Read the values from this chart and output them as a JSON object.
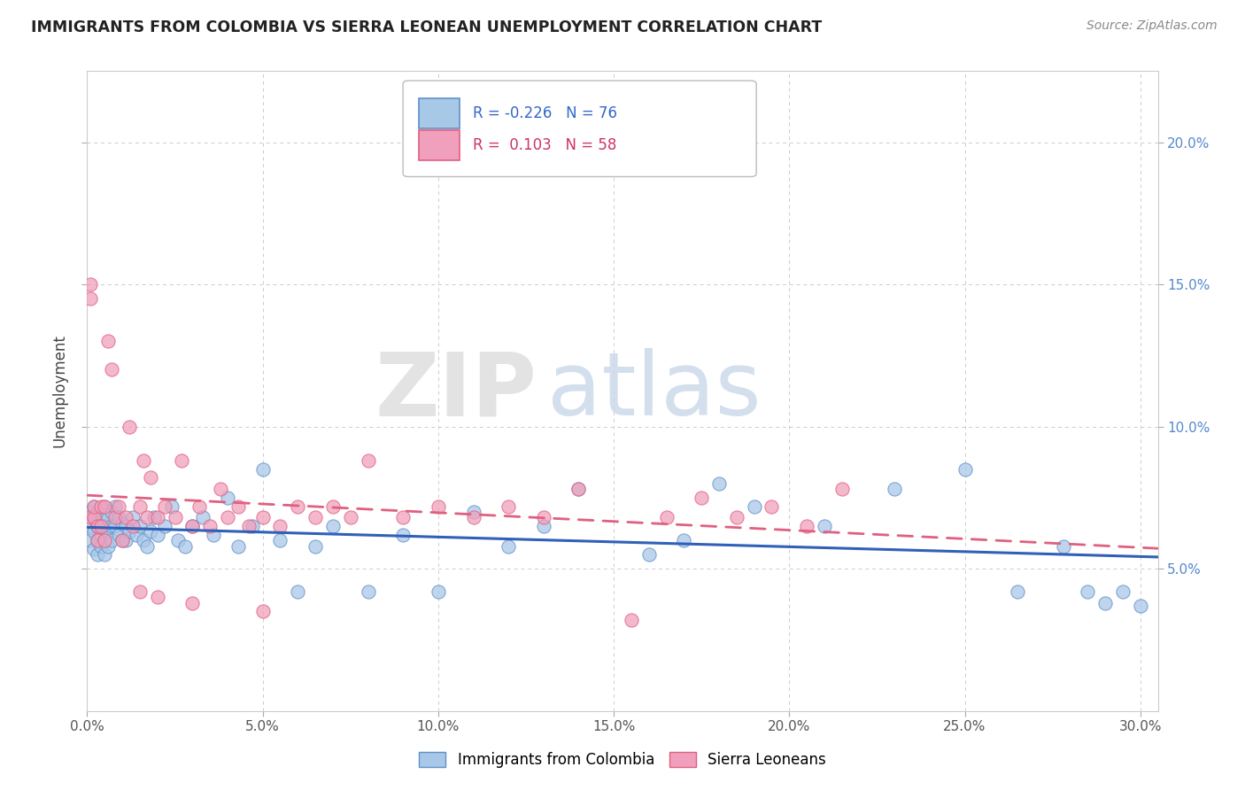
{
  "title": "IMMIGRANTS FROM COLOMBIA VS SIERRA LEONEAN UNEMPLOYMENT CORRELATION CHART",
  "source": "Source: ZipAtlas.com",
  "ylabel": "Unemployment",
  "ytick_values": [
    0.05,
    0.1,
    0.15,
    0.2
  ],
  "ytick_labels": [
    "5.0%",
    "10.0%",
    "15.0%",
    "20.0%"
  ],
  "xtick_values": [
    0.0,
    0.05,
    0.1,
    0.15,
    0.2,
    0.25,
    0.3
  ],
  "xtick_labels": [
    "0.0%",
    "5.0%",
    "10.0%",
    "15.0%",
    "20.0%",
    "25.0%",
    "30.0%"
  ],
  "xlim": [
    0.0,
    0.305
  ],
  "ylim": [
    0.0,
    0.225
  ],
  "watermark_zip": "ZIP",
  "watermark_atlas": "atlas",
  "legend_blue_label": "Immigrants from Colombia",
  "legend_pink_label": "Sierra Leoneans",
  "blue_R": -0.226,
  "blue_N": 76,
  "pink_R": 0.103,
  "pink_N": 58,
  "blue_color": "#A8C8E8",
  "pink_color": "#F0A0BC",
  "blue_edge_color": "#6090C8",
  "pink_edge_color": "#E06080",
  "blue_line_color": "#3060B8",
  "pink_line_color": "#E06080",
  "blue_scatter_x": [
    0.001,
    0.001,
    0.001,
    0.002,
    0.002,
    0.002,
    0.002,
    0.003,
    0.003,
    0.003,
    0.003,
    0.004,
    0.004,
    0.004,
    0.005,
    0.005,
    0.005,
    0.005,
    0.006,
    0.006,
    0.006,
    0.007,
    0.007,
    0.007,
    0.008,
    0.008,
    0.009,
    0.009,
    0.01,
    0.01,
    0.011,
    0.011,
    0.012,
    0.013,
    0.014,
    0.015,
    0.016,
    0.017,
    0.018,
    0.019,
    0.02,
    0.022,
    0.024,
    0.026,
    0.028,
    0.03,
    0.033,
    0.036,
    0.04,
    0.043,
    0.047,
    0.05,
    0.055,
    0.06,
    0.065,
    0.07,
    0.08,
    0.09,
    0.1,
    0.11,
    0.12,
    0.13,
    0.14,
    0.16,
    0.17,
    0.18,
    0.19,
    0.21,
    0.23,
    0.25,
    0.265,
    0.278,
    0.285,
    0.29,
    0.295,
    0.3
  ],
  "blue_scatter_y": [
    0.065,
    0.07,
    0.06,
    0.068,
    0.063,
    0.057,
    0.072,
    0.065,
    0.06,
    0.055,
    0.07,
    0.068,
    0.062,
    0.058,
    0.072,
    0.065,
    0.06,
    0.055,
    0.068,
    0.063,
    0.058,
    0.07,
    0.065,
    0.06,
    0.072,
    0.065,
    0.068,
    0.062,
    0.066,
    0.06,
    0.065,
    0.06,
    0.063,
    0.068,
    0.062,
    0.065,
    0.06,
    0.058,
    0.063,
    0.068,
    0.062,
    0.065,
    0.072,
    0.06,
    0.058,
    0.065,
    0.068,
    0.062,
    0.075,
    0.058,
    0.065,
    0.085,
    0.06,
    0.042,
    0.058,
    0.065,
    0.042,
    0.062,
    0.042,
    0.07,
    0.058,
    0.065,
    0.078,
    0.055,
    0.06,
    0.08,
    0.072,
    0.065,
    0.078,
    0.085,
    0.042,
    0.058,
    0.042,
    0.038,
    0.042,
    0.037
  ],
  "pink_scatter_x": [
    0.001,
    0.001,
    0.001,
    0.002,
    0.002,
    0.003,
    0.003,
    0.004,
    0.004,
    0.005,
    0.005,
    0.006,
    0.007,
    0.008,
    0.009,
    0.01,
    0.011,
    0.012,
    0.013,
    0.015,
    0.016,
    0.017,
    0.018,
    0.02,
    0.022,
    0.025,
    0.027,
    0.03,
    0.032,
    0.035,
    0.038,
    0.04,
    0.043,
    0.046,
    0.05,
    0.055,
    0.06,
    0.065,
    0.07,
    0.075,
    0.08,
    0.09,
    0.1,
    0.11,
    0.12,
    0.13,
    0.14,
    0.155,
    0.165,
    0.175,
    0.185,
    0.195,
    0.205,
    0.215,
    0.03,
    0.05,
    0.02,
    0.015
  ],
  "pink_scatter_y": [
    0.068,
    0.145,
    0.15,
    0.068,
    0.072,
    0.065,
    0.06,
    0.072,
    0.065,
    0.06,
    0.072,
    0.13,
    0.12,
    0.068,
    0.072,
    0.06,
    0.068,
    0.1,
    0.065,
    0.072,
    0.088,
    0.068,
    0.082,
    0.068,
    0.072,
    0.068,
    0.088,
    0.065,
    0.072,
    0.065,
    0.078,
    0.068,
    0.072,
    0.065,
    0.068,
    0.065,
    0.072,
    0.068,
    0.072,
    0.068,
    0.088,
    0.068,
    0.072,
    0.068,
    0.072,
    0.068,
    0.078,
    0.032,
    0.068,
    0.075,
    0.068,
    0.072,
    0.065,
    0.078,
    0.038,
    0.035,
    0.04,
    0.042
  ]
}
